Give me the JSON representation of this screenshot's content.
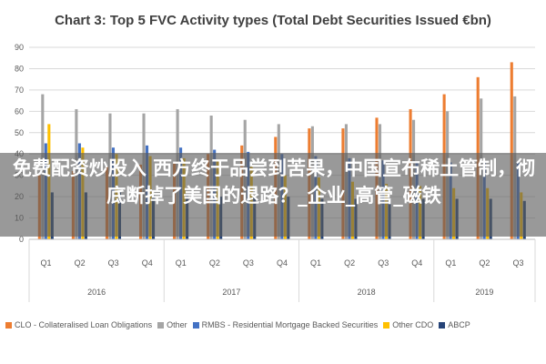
{
  "chart_data": {
    "type": "bar",
    "title": "Chart 3: Top 5 FVC Activity types (Total Debt Securities Issued €bn)",
    "ylim": [
      0,
      90
    ],
    "yticks": [
      0,
      10,
      20,
      30,
      40,
      50,
      60,
      70,
      80,
      90
    ],
    "grid": true,
    "legend": "bottom",
    "categories": [
      "Q1",
      "Q2",
      "Q3",
      "Q4",
      "Q1",
      "Q2",
      "Q3",
      "Q4",
      "Q1",
      "Q2",
      "Q3",
      "Q4",
      "Q1",
      "Q2",
      "Q3"
    ],
    "year_groups": [
      {
        "label": "2016",
        "count": 4
      },
      {
        "label": "2017",
        "count": 4
      },
      {
        "label": "2018",
        "count": 4
      },
      {
        "label": "2019",
        "count": 3
      }
    ],
    "series": [
      {
        "name": "CLO - Collateralised Loan Obligations",
        "color": "#ED7D31",
        "values": [
          30,
          32,
          34,
          35,
          36,
          40,
          44,
          48,
          52,
          52,
          57,
          61,
          68,
          76,
          83
        ]
      },
      {
        "name": "Other",
        "color": "#A5A5A5",
        "values": [
          68,
          61,
          59,
          59,
          61,
          58,
          56,
          54,
          53,
          54,
          54,
          56,
          60,
          66,
          67
        ]
      },
      {
        "name": "RMBS - Residential Mortgage Backed Securities",
        "color": "#4472C4",
        "values": [
          45,
          45,
          43,
          44,
          43,
          42,
          41,
          40,
          39,
          38,
          37,
          36,
          36,
          36,
          36
        ]
      },
      {
        "name": "Other CDO",
        "color": "#FFC000",
        "values": [
          54,
          43,
          40,
          39,
          38,
          37,
          34,
          30,
          29,
          27,
          26,
          25,
          24,
          24,
          22
        ]
      },
      {
        "name": "ABCP",
        "color": "#264478",
        "values": [
          22,
          22,
          22,
          21,
          21,
          20,
          20,
          20,
          19,
          19,
          19,
          19,
          19,
          19,
          18
        ]
      }
    ]
  },
  "banner": {
    "text": "免费配资炒股入 西方终于品尝到苦果，中国宣布稀土管制，彻底断掉了美国的退路？_企业_高管_磁铁"
  }
}
